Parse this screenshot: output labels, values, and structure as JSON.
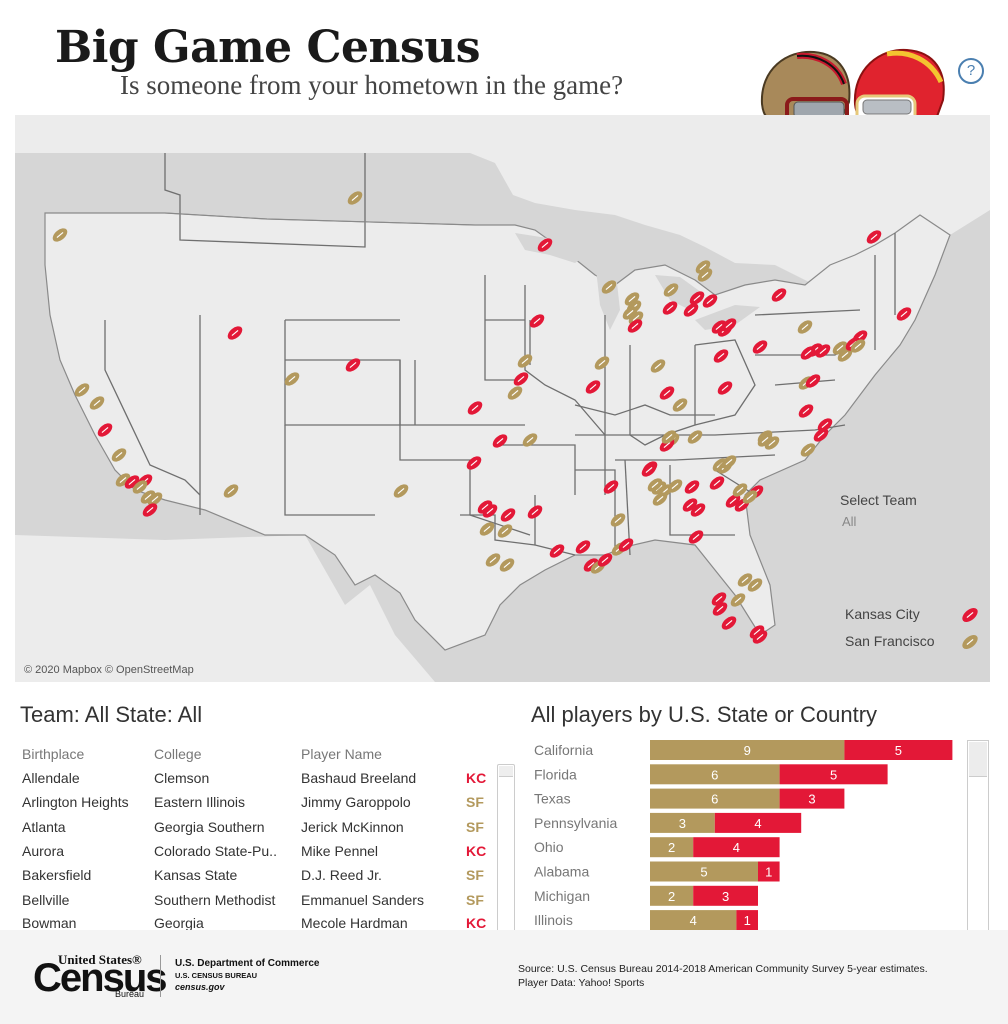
{
  "header": {
    "title": "Big Game Census",
    "subtitle": "Is someone from your hometown in the game?",
    "help_icon_label": "?"
  },
  "map": {
    "attribution": "© 2020 Mapbox © OpenStreetMap"
  },
  "filter": {
    "label": "Select Team",
    "value": "All"
  },
  "legend": [
    {
      "label": "Kansas City",
      "team": "KC"
    },
    {
      "label": "San Francisco",
      "team": "SF"
    }
  ],
  "colors": {
    "kc": "#e31837",
    "sf": "#b3995d",
    "map_water": "#d6d6d6",
    "map_land": "#ececec",
    "border": "#6f6f6f"
  },
  "table": {
    "heading": "Team: All  State: All",
    "headers": {
      "birthplace": "Birthplace",
      "college": "College",
      "player": "Player Name"
    },
    "rows": [
      {
        "birthplace": "Allendale",
        "college": "Clemson",
        "player": "Bashaud Breeland",
        "team": "KC"
      },
      {
        "birthplace": "Arlington Heights",
        "college": "Eastern Illinois",
        "player": "Jimmy Garoppolo",
        "team": "SF"
      },
      {
        "birthplace": "Atlanta",
        "college": "Georgia Southern",
        "player": "Jerick McKinnon",
        "team": "SF"
      },
      {
        "birthplace": "Aurora",
        "college": "Colorado State-Pu..",
        "player": "Mike Pennel",
        "team": "KC"
      },
      {
        "birthplace": "Bakersfield",
        "college": "Kansas State",
        "player": "D.J. Reed Jr.",
        "team": "SF"
      },
      {
        "birthplace": "Bellville",
        "college": "Southern Methodist",
        "player": "Emmanuel Sanders",
        "team": "SF"
      },
      {
        "birthplace": "Bowman",
        "college": "Georgia",
        "player": "Mecole Hardman",
        "team": "KC"
      }
    ]
  },
  "chart_data": {
    "type": "bar",
    "title": "All players by U.S. State or Country",
    "orientation": "horizontal",
    "stacked": true,
    "categories": [
      "California",
      "Florida",
      "Texas",
      "Pennsylvania",
      "Ohio",
      "Alabama",
      "Michigan",
      "Illinois"
    ],
    "series": [
      {
        "name": "San Francisco",
        "color": "#b3995d",
        "values": [
          9,
          6,
          6,
          3,
          2,
          5,
          2,
          4
        ]
      },
      {
        "name": "Kansas City",
        "color": "#e31837",
        "values": [
          5,
          5,
          3,
          4,
          4,
          1,
          3,
          1
        ]
      }
    ]
  },
  "footer": {
    "census_united_states": "United States®",
    "census_word": "Census",
    "census_bureau": "Bureau",
    "dept": "U.S. Department of Commerce",
    "dept_sub": "U.S. CENSUS BUREAU",
    "site": "census.gov",
    "source_line1": "Source: U.S. Census Bureau 2014-2018 American Community Survey 5-year estimates.",
    "source_line2": "Player Data: Yahoo! Sports"
  }
}
